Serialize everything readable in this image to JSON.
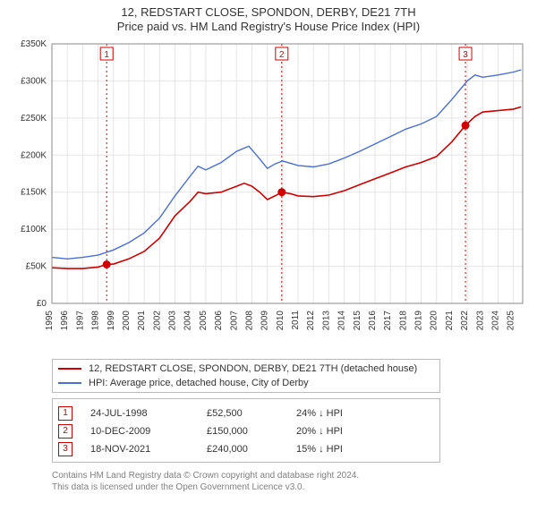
{
  "title_line1": "12, REDSTART CLOSE, SPONDON, DERBY, DE21 7TH",
  "title_line2": "Price paid vs. HM Land Registry's House Price Index (HPI)",
  "chart": {
    "type": "line",
    "x_years": [
      1995,
      1996,
      1997,
      1998,
      1999,
      2000,
      2001,
      2002,
      2003,
      2004,
      2005,
      2006,
      2007,
      2008,
      2009,
      2010,
      2011,
      2012,
      2013,
      2014,
      2015,
      2016,
      2017,
      2018,
      2019,
      2020,
      2021,
      2022,
      2023,
      2024,
      2025
    ],
    "ylim": [
      0,
      350000
    ],
    "ytick_step": 50000,
    "ylabels": [
      "£0",
      "£50K",
      "£100K",
      "£150K",
      "£200K",
      "£250K",
      "£300K",
      "£350K"
    ],
    "background_color": "#ffffff",
    "grid_color": "#e5e5e5",
    "axis_color": "#888888",
    "series": [
      {
        "name": "12, REDSTART CLOSE, SPONDON, DERBY, DE21 7TH (detached house)",
        "color": "#d00000",
        "width": 1.6,
        "data": [
          [
            1995.0,
            48000
          ],
          [
            1996.0,
            47000
          ],
          [
            1997.0,
            47000
          ],
          [
            1998.0,
            49000
          ],
          [
            1998.56,
            52500
          ],
          [
            1999.0,
            53000
          ],
          [
            2000.0,
            60000
          ],
          [
            2001.0,
            70000
          ],
          [
            2002.0,
            88000
          ],
          [
            2003.0,
            118000
          ],
          [
            2004.0,
            138000
          ],
          [
            2004.5,
            150000
          ],
          [
            2005.0,
            148000
          ],
          [
            2006.0,
            150000
          ],
          [
            2007.0,
            158000
          ],
          [
            2007.5,
            162000
          ],
          [
            2008.0,
            158000
          ],
          [
            2008.5,
            150000
          ],
          [
            2009.0,
            140000
          ],
          [
            2009.5,
            145000
          ],
          [
            2009.94,
            150000
          ],
          [
            2010.5,
            148000
          ],
          [
            2011.0,
            145000
          ],
          [
            2012.0,
            144000
          ],
          [
            2013.0,
            146000
          ],
          [
            2014.0,
            152000
          ],
          [
            2015.0,
            160000
          ],
          [
            2016.0,
            168000
          ],
          [
            2017.0,
            176000
          ],
          [
            2018.0,
            184000
          ],
          [
            2019.0,
            190000
          ],
          [
            2020.0,
            198000
          ],
          [
            2021.0,
            218000
          ],
          [
            2021.88,
            240000
          ],
          [
            2022.5,
            252000
          ],
          [
            2023.0,
            258000
          ],
          [
            2024.0,
            260000
          ],
          [
            2025.0,
            262000
          ],
          [
            2025.5,
            265000
          ]
        ]
      },
      {
        "name": "HPI: Average price, detached house, City of Derby",
        "color": "#4a6fd4",
        "width": 1.4,
        "data": [
          [
            1995.0,
            62000
          ],
          [
            1996.0,
            60000
          ],
          [
            1997.0,
            62000
          ],
          [
            1998.0,
            65000
          ],
          [
            1999.0,
            72000
          ],
          [
            2000.0,
            82000
          ],
          [
            2001.0,
            95000
          ],
          [
            2002.0,
            115000
          ],
          [
            2003.0,
            145000
          ],
          [
            2004.0,
            172000
          ],
          [
            2004.5,
            185000
          ],
          [
            2005.0,
            180000
          ],
          [
            2006.0,
            190000
          ],
          [
            2007.0,
            205000
          ],
          [
            2007.8,
            212000
          ],
          [
            2008.5,
            195000
          ],
          [
            2009.0,
            182000
          ],
          [
            2009.5,
            188000
          ],
          [
            2010.0,
            192000
          ],
          [
            2011.0,
            186000
          ],
          [
            2012.0,
            184000
          ],
          [
            2013.0,
            188000
          ],
          [
            2014.0,
            196000
          ],
          [
            2015.0,
            205000
          ],
          [
            2016.0,
            215000
          ],
          [
            2017.0,
            225000
          ],
          [
            2018.0,
            235000
          ],
          [
            2019.0,
            242000
          ],
          [
            2020.0,
            252000
          ],
          [
            2021.0,
            275000
          ],
          [
            2022.0,
            300000
          ],
          [
            2022.5,
            308000
          ],
          [
            2023.0,
            305000
          ],
          [
            2024.0,
            308000
          ],
          [
            2025.0,
            312000
          ],
          [
            2025.5,
            315000
          ]
        ]
      }
    ],
    "markers": [
      {
        "label": "1",
        "x": 1998.56,
        "y": 52500,
        "color": "#d00000"
      },
      {
        "label": "2",
        "x": 2009.94,
        "y": 150000,
        "color": "#d00000"
      },
      {
        "label": "3",
        "x": 2021.88,
        "y": 240000,
        "color": "#d00000"
      }
    ]
  },
  "legend": {
    "rows": [
      {
        "color": "#d00000",
        "label": "12, REDSTART CLOSE, SPONDON, DERBY, DE21 7TH (detached house)"
      },
      {
        "color": "#4a6fd4",
        "label": "HPI: Average price, detached house, City of Derby"
      }
    ]
  },
  "transactions": {
    "rows": [
      {
        "badge": "1",
        "date": "24-JUL-1998",
        "price": "£52,500",
        "delta": "24% ↓ HPI"
      },
      {
        "badge": "2",
        "date": "10-DEC-2009",
        "price": "£150,000",
        "delta": "20% ↓ HPI"
      },
      {
        "badge": "3",
        "date": "18-NOV-2021",
        "price": "£240,000",
        "delta": "15% ↓ HPI"
      }
    ]
  },
  "footer": {
    "line1": "Contains HM Land Registry data © Crown copyright and database right 2024.",
    "line2": "This data is licensed under the Open Government Licence v3.0."
  }
}
